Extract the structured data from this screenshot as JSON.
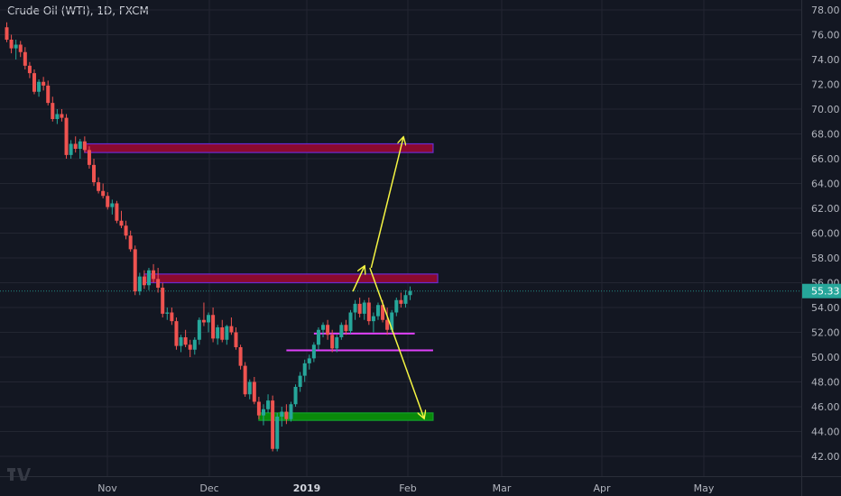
{
  "chart_data": {
    "type": "candlestick",
    "title": "Crude Oil (WTI), 1D, FXCM",
    "ylim": [
      41,
      79
    ],
    "y_ticks": [
      42,
      44,
      46,
      48,
      50,
      52,
      54,
      56,
      58,
      60,
      62,
      64,
      66,
      68,
      70,
      72,
      74,
      76,
      78
    ],
    "x_ticks": [
      "Nov",
      "Dec",
      "2019",
      "Feb",
      "Mar",
      "Apr",
      "May"
    ],
    "last_price": "55.33",
    "colors": {
      "up": "#26a69a",
      "down": "#ef5350",
      "background": "#131722",
      "grid": "#232632",
      "axis_text": "#b2b5be"
    },
    "candles": [
      {
        "o": 76.6,
        "h": 77.0,
        "l": 75.4,
        "c": 75.6
      },
      {
        "o": 75.6,
        "h": 76.0,
        "l": 74.5,
        "c": 74.9
      },
      {
        "o": 74.9,
        "h": 75.6,
        "l": 74.0,
        "c": 75.2
      },
      {
        "o": 75.2,
        "h": 75.5,
        "l": 74.2,
        "c": 74.6
      },
      {
        "o": 74.6,
        "h": 75.0,
        "l": 73.2,
        "c": 73.5
      },
      {
        "o": 73.5,
        "h": 73.8,
        "l": 72.5,
        "c": 72.9
      },
      {
        "o": 72.9,
        "h": 73.2,
        "l": 71.2,
        "c": 71.4
      },
      {
        "o": 71.4,
        "h": 72.4,
        "l": 71.0,
        "c": 72.2
      },
      {
        "o": 72.2,
        "h": 72.6,
        "l": 71.5,
        "c": 71.9
      },
      {
        "o": 71.9,
        "h": 72.3,
        "l": 70.3,
        "c": 70.5
      },
      {
        "o": 70.5,
        "h": 71.0,
        "l": 69.0,
        "c": 69.2
      },
      {
        "o": 69.2,
        "h": 70.0,
        "l": 68.8,
        "c": 69.6
      },
      {
        "o": 69.6,
        "h": 70.0,
        "l": 69.0,
        "c": 69.3
      },
      {
        "o": 69.3,
        "h": 69.6,
        "l": 66.0,
        "c": 66.3
      },
      {
        "o": 66.3,
        "h": 67.5,
        "l": 66.0,
        "c": 67.2
      },
      {
        "o": 67.2,
        "h": 67.8,
        "l": 66.5,
        "c": 66.8
      },
      {
        "o": 66.8,
        "h": 67.6,
        "l": 66.0,
        "c": 67.4
      },
      {
        "o": 67.4,
        "h": 67.8,
        "l": 66.5,
        "c": 66.7
      },
      {
        "o": 66.7,
        "h": 67.0,
        "l": 65.2,
        "c": 65.5
      },
      {
        "o": 65.5,
        "h": 66.0,
        "l": 63.8,
        "c": 64.1
      },
      {
        "o": 64.1,
        "h": 64.5,
        "l": 63.2,
        "c": 63.4
      },
      {
        "o": 63.4,
        "h": 64.0,
        "l": 62.8,
        "c": 63.0
      },
      {
        "o": 63.0,
        "h": 63.3,
        "l": 61.9,
        "c": 62.1
      },
      {
        "o": 62.1,
        "h": 62.7,
        "l": 61.5,
        "c": 62.4
      },
      {
        "o": 62.4,
        "h": 62.6,
        "l": 60.8,
        "c": 61.0
      },
      {
        "o": 61.0,
        "h": 61.8,
        "l": 60.4,
        "c": 60.6
      },
      {
        "o": 60.6,
        "h": 61.0,
        "l": 59.5,
        "c": 59.8
      },
      {
        "o": 59.8,
        "h": 60.2,
        "l": 58.5,
        "c": 58.7
      },
      {
        "o": 58.7,
        "h": 59.0,
        "l": 55.0,
        "c": 55.3
      },
      {
        "o": 55.3,
        "h": 56.8,
        "l": 55.0,
        "c": 56.5
      },
      {
        "o": 56.5,
        "h": 57.0,
        "l": 55.5,
        "c": 55.8
      },
      {
        "o": 55.8,
        "h": 57.2,
        "l": 55.4,
        "c": 57.0
      },
      {
        "o": 57.0,
        "h": 57.5,
        "l": 56.0,
        "c": 56.3
      },
      {
        "o": 56.3,
        "h": 57.2,
        "l": 55.2,
        "c": 55.6
      },
      {
        "o": 55.6,
        "h": 56.0,
        "l": 53.2,
        "c": 53.5
      },
      {
        "o": 53.5,
        "h": 54.0,
        "l": 53.0,
        "c": 53.6
      },
      {
        "o": 53.6,
        "h": 54.0,
        "l": 52.6,
        "c": 52.9
      },
      {
        "o": 52.9,
        "h": 53.2,
        "l": 50.6,
        "c": 50.9
      },
      {
        "o": 50.9,
        "h": 51.8,
        "l": 50.4,
        "c": 51.6
      },
      {
        "o": 51.6,
        "h": 52.2,
        "l": 50.8,
        "c": 51.0
      },
      {
        "o": 51.0,
        "h": 51.4,
        "l": 50.0,
        "c": 50.6
      },
      {
        "o": 50.6,
        "h": 51.6,
        "l": 50.2,
        "c": 51.4
      },
      {
        "o": 51.4,
        "h": 53.2,
        "l": 51.0,
        "c": 53.0
      },
      {
        "o": 53.0,
        "h": 54.4,
        "l": 52.5,
        "c": 52.8
      },
      {
        "o": 52.8,
        "h": 53.6,
        "l": 52.0,
        "c": 53.4
      },
      {
        "o": 53.4,
        "h": 54.0,
        "l": 51.2,
        "c": 51.5
      },
      {
        "o": 51.5,
        "h": 52.6,
        "l": 51.0,
        "c": 52.4
      },
      {
        "o": 52.4,
        "h": 53.0,
        "l": 51.2,
        "c": 51.4
      },
      {
        "o": 51.4,
        "h": 52.6,
        "l": 51.0,
        "c": 52.5
      },
      {
        "o": 52.5,
        "h": 53.2,
        "l": 51.8,
        "c": 52.0
      },
      {
        "o": 52.0,
        "h": 52.4,
        "l": 50.6,
        "c": 50.8
      },
      {
        "o": 50.8,
        "h": 51.0,
        "l": 49.0,
        "c": 49.3
      },
      {
        "o": 49.3,
        "h": 49.6,
        "l": 46.8,
        "c": 47.0
      },
      {
        "o": 47.0,
        "h": 48.2,
        "l": 46.6,
        "c": 48.0
      },
      {
        "o": 48.0,
        "h": 48.4,
        "l": 46.2,
        "c": 46.4
      },
      {
        "o": 46.4,
        "h": 46.8,
        "l": 45.0,
        "c": 45.3
      },
      {
        "o": 45.3,
        "h": 46.2,
        "l": 44.5,
        "c": 45.8
      },
      {
        "o": 45.8,
        "h": 47.0,
        "l": 45.5,
        "c": 46.5
      },
      {
        "o": 46.5,
        "h": 46.9,
        "l": 42.4,
        "c": 42.6
      },
      {
        "o": 42.6,
        "h": 45.5,
        "l": 42.4,
        "c": 45.2
      },
      {
        "o": 45.2,
        "h": 46.0,
        "l": 44.4,
        "c": 45.6
      },
      {
        "o": 45.6,
        "h": 46.2,
        "l": 44.6,
        "c": 45.0
      },
      {
        "o": 45.0,
        "h": 46.4,
        "l": 44.8,
        "c": 46.2
      },
      {
        "o": 46.2,
        "h": 47.8,
        "l": 46.0,
        "c": 47.6
      },
      {
        "o": 47.6,
        "h": 48.8,
        "l": 47.2,
        "c": 48.5
      },
      {
        "o": 48.5,
        "h": 49.8,
        "l": 48.0,
        "c": 49.5
      },
      {
        "o": 49.5,
        "h": 50.2,
        "l": 49.0,
        "c": 49.9
      },
      {
        "o": 49.9,
        "h": 51.2,
        "l": 49.6,
        "c": 51.0
      },
      {
        "o": 51.0,
        "h": 52.4,
        "l": 50.6,
        "c": 52.2
      },
      {
        "o": 52.2,
        "h": 52.8,
        "l": 51.6,
        "c": 52.6
      },
      {
        "o": 52.6,
        "h": 53.0,
        "l": 51.4,
        "c": 51.8
      },
      {
        "o": 51.8,
        "h": 52.2,
        "l": 50.4,
        "c": 50.7
      },
      {
        "o": 50.7,
        "h": 51.8,
        "l": 50.4,
        "c": 51.6
      },
      {
        "o": 51.6,
        "h": 52.8,
        "l": 51.4,
        "c": 52.6
      },
      {
        "o": 52.6,
        "h": 53.0,
        "l": 51.8,
        "c": 52.1
      },
      {
        "o": 52.1,
        "h": 53.8,
        "l": 51.9,
        "c": 53.6
      },
      {
        "o": 53.6,
        "h": 54.6,
        "l": 53.0,
        "c": 54.3
      },
      {
        "o": 54.3,
        "h": 54.8,
        "l": 53.2,
        "c": 53.5
      },
      {
        "o": 53.5,
        "h": 54.6,
        "l": 53.0,
        "c": 54.4
      },
      {
        "o": 54.4,
        "h": 54.8,
        "l": 52.6,
        "c": 52.9
      },
      {
        "o": 52.9,
        "h": 53.6,
        "l": 52.0,
        "c": 53.3
      },
      {
        "o": 53.3,
        "h": 54.4,
        "l": 53.0,
        "c": 54.2
      },
      {
        "o": 54.2,
        "h": 54.6,
        "l": 52.8,
        "c": 53.0
      },
      {
        "o": 53.0,
        "h": 54.0,
        "l": 51.8,
        "c": 52.2
      },
      {
        "o": 52.2,
        "h": 53.8,
        "l": 52.0,
        "c": 53.6
      },
      {
        "o": 53.6,
        "h": 54.8,
        "l": 53.3,
        "c": 54.6
      },
      {
        "o": 54.6,
        "h": 55.2,
        "l": 54.0,
        "c": 54.3
      },
      {
        "o": 54.3,
        "h": 55.4,
        "l": 54.0,
        "c": 55.0
      },
      {
        "o": 55.0,
        "h": 55.7,
        "l": 54.6,
        "c": 55.33
      }
    ],
    "zones": [
      {
        "y_from": 66.5,
        "y_to": 67.2,
        "x_from_index": 17,
        "x_to_index": 93,
        "kind": "resistance"
      },
      {
        "y_from": 56.0,
        "y_to": 56.7,
        "x_from_index": 30,
        "x_to_index": 94,
        "kind": "resistance"
      },
      {
        "y_from": 44.9,
        "y_to": 45.5,
        "x_from_index": 55,
        "x_to_index": 93,
        "kind": "support"
      }
    ],
    "lines": [
      {
        "y": 51.9,
        "x_from_index": 67,
        "x_to_index": 89
      },
      {
        "y": 50.55,
        "x_from_index": 61,
        "x_to_index": 93
      }
    ],
    "arrows": [
      {
        "from_index": 75.5,
        "from_y": 55.3,
        "to_index": 78,
        "to_y": 57.3
      },
      {
        "from_index": 79.5,
        "from_y": 57.2,
        "to_index": 86.5,
        "to_y": 67.7
      },
      {
        "from_index": 79.2,
        "from_y": 57.2,
        "to_index": 91,
        "to_y": 45.1
      }
    ]
  }
}
